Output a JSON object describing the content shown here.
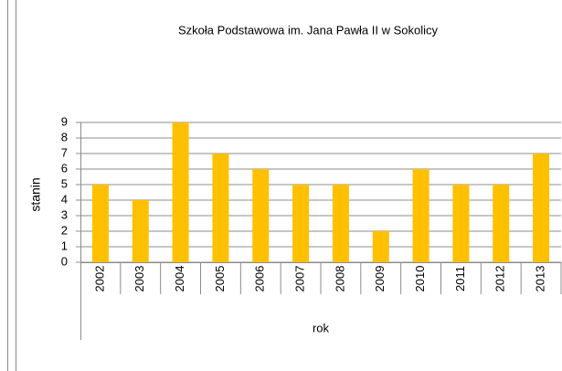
{
  "chart_data": {
    "type": "bar",
    "title": "Szkoła Podstawowa im. Jana Pawła II w Sokolicy",
    "y_label": "stanin",
    "x_label": "rok",
    "categories": [
      "2002",
      "2003",
      "2004",
      "2005",
      "2006",
      "2007",
      "2008",
      "2009",
      "2010",
      "2011",
      "2012",
      "2013"
    ],
    "values": [
      5,
      4,
      9,
      7,
      6,
      5,
      5,
      2,
      6,
      5,
      5,
      7
    ],
    "color": "#ffc000",
    "ylim": [
      0,
      9
    ],
    "yticks": [
      0,
      1,
      2,
      3,
      4,
      5,
      6,
      7,
      8,
      9
    ],
    "grid": true
  }
}
